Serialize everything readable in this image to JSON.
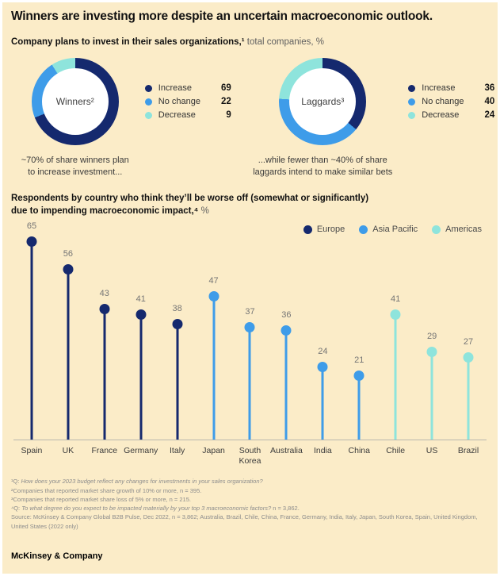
{
  "page": {
    "background_color": "#FBECC8",
    "title": "Winners are investing more despite an uncertain macroeconomic outlook."
  },
  "section_donuts": {
    "heading_bold": "Company plans to invest in their sales organizations,¹",
    "heading_regular": " total companies, %"
  },
  "section_country": {
    "heading_line1": "Respondents by country who think they’ll be worse off (somewhat or significantly)",
    "heading_line2_bold": "due to impending macroeconomic impact,⁴",
    "heading_line2_regular": " %"
  },
  "chart_data": [
    {
      "type": "pie",
      "subtype": "donut",
      "title": "Winners²",
      "labels": [
        "Increase",
        "No change",
        "Decrease"
      ],
      "values": [
        69,
        22,
        9
      ],
      "colors": [
        "#15296E",
        "#3E9CE9",
        "#8EE4DC"
      ],
      "annotation_lines": [
        "~70% of share winners plan",
        "to increase investment..."
      ]
    },
    {
      "type": "pie",
      "subtype": "donut",
      "title": "Laggards³",
      "labels": [
        "Increase",
        "No change",
        "Decrease"
      ],
      "values": [
        36,
        40,
        24
      ],
      "colors": [
        "#15296E",
        "#3E9CE9",
        "#8EE4DC"
      ],
      "annotation_lines": [
        "...while fewer than ~40% of share",
        "laggards intend to make similar bets"
      ]
    },
    {
      "type": "bar",
      "subtype": "lollipop",
      "title": "Respondents by country who think they’ll be worse off (somewhat or significantly) due to impending macroeconomic impact, %",
      "categories": [
        "Spain",
        "UK",
        "France",
        "Germany",
        "Italy",
        "Japan",
        "South Korea",
        "Australia",
        "India",
        "China",
        "Chile",
        "US",
        "Brazil"
      ],
      "values": [
        65,
        56,
        43,
        41,
        38,
        47,
        37,
        36,
        24,
        21,
        41,
        29,
        27
      ],
      "groups": [
        "Europe",
        "Europe",
        "Europe",
        "Europe",
        "Europe",
        "Asia Pacific",
        "Asia Pacific",
        "Asia Pacific",
        "Asia Pacific",
        "Asia Pacific",
        "Americas",
        "Americas",
        "Americas"
      ],
      "group_colors": {
        "Europe": "#15296E",
        "Asia Pacific": "#3E9CE9",
        "Americas": "#8EE4DC"
      },
      "legend": [
        "Europe",
        "Asia Pacific",
        "Americas"
      ],
      "legend_position": "top-right",
      "ylim": [
        0,
        65
      ],
      "grid": false
    }
  ],
  "footnotes": [
    {
      "segments": [
        {
          "text": "¹Q: ",
          "italic": false
        },
        {
          "text": "How does your 2023 budget reflect any changes for investments in your sales organization?",
          "italic": true
        }
      ]
    },
    {
      "segments": [
        {
          "text": "²Companies that reported market share growth of 10% or more, n = 395.",
          "italic": false
        }
      ]
    },
    {
      "segments": [
        {
          "text": "³Companies that reported market share loss of 5% or more, n = 215.",
          "italic": false
        }
      ]
    },
    {
      "segments": [
        {
          "text": "⁴Q: ",
          "italic": false
        },
        {
          "text": "To what degree do you expect to be impacted materially by your top 3 macroeconomic factors?",
          "italic": true
        },
        {
          "text": " n = 3,862.",
          "italic": false
        }
      ]
    },
    {
      "segments": [
        {
          "text": "Source: McKinsey & Company Global B2B Pulse, Dec 2022, n = 3,862; Australia, Brazil, Chile, China, France, Germany, India, Italy, Japan, South Korea, Spain, United Kingdom, United States (2022 only)",
          "italic": false
        }
      ]
    }
  ],
  "footer": {
    "brand": "McKinsey & Company"
  }
}
